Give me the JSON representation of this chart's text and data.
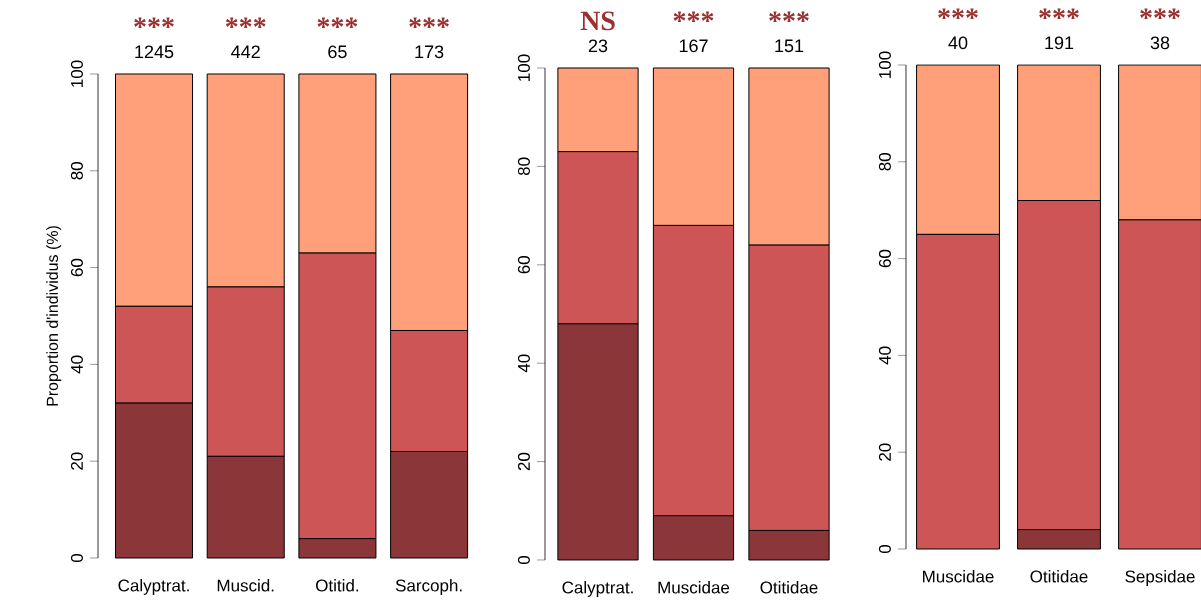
{
  "chart_data": [
    {
      "type": "bar",
      "stacked": true,
      "ylabel": "Proportion d'individus (%)",
      "categories": [
        "Calyptrat.",
        "Muscid.",
        "Otitid.",
        "Sarcoph."
      ],
      "ylim": [
        0,
        100
      ],
      "yticks": [
        0,
        20,
        40,
        60,
        80,
        100
      ],
      "series": [
        {
          "color": "#8b3739",
          "values": [
            32,
            21,
            4,
            22
          ]
        },
        {
          "color": "#cd5555",
          "values": [
            20,
            35,
            59,
            25
          ]
        },
        {
          "color": "#ffa07a",
          "values": [
            48,
            44,
            37,
            53
          ]
        }
      ],
      "annotations": [
        "***",
        "1245",
        "***",
        "442",
        "***",
        "65",
        "***",
        "173"
      ]
    },
    {
      "type": "bar",
      "stacked": true,
      "categories": [
        "Calyptrat.",
        "Muscidae",
        "Otitidae"
      ],
      "ylim": [
        0,
        100
      ],
      "yticks": [
        0,
        20,
        40,
        60,
        80,
        100
      ],
      "series": [
        {
          "color": "#8b3739",
          "values": [
            48,
            9,
            6
          ]
        },
        {
          "color": "#cd5555",
          "values": [
            35,
            59,
            58
          ]
        },
        {
          "color": "#ffa07a",
          "values": [
            17,
            32,
            36
          ]
        }
      ],
      "annotations": [
        "NS",
        "23",
        "***",
        "167",
        "***",
        "151"
      ]
    },
    {
      "type": "bar",
      "stacked": true,
      "categories": [
        "Muscidae",
        "Otitidae",
        "Sepsidae"
      ],
      "ylim": [
        0,
        100
      ],
      "yticks": [
        0,
        20,
        40,
        60,
        80,
        100
      ],
      "series": [
        {
          "color": "#8b3739",
          "values": [
            0,
            4,
            0
          ]
        },
        {
          "color": "#cd5555",
          "values": [
            65,
            68,
            68
          ]
        },
        {
          "color": "#ffa07a",
          "values": [
            35,
            28,
            32
          ]
        }
      ],
      "annotations": [
        "***",
        "40",
        "***",
        "191",
        "***",
        "38"
      ]
    }
  ]
}
